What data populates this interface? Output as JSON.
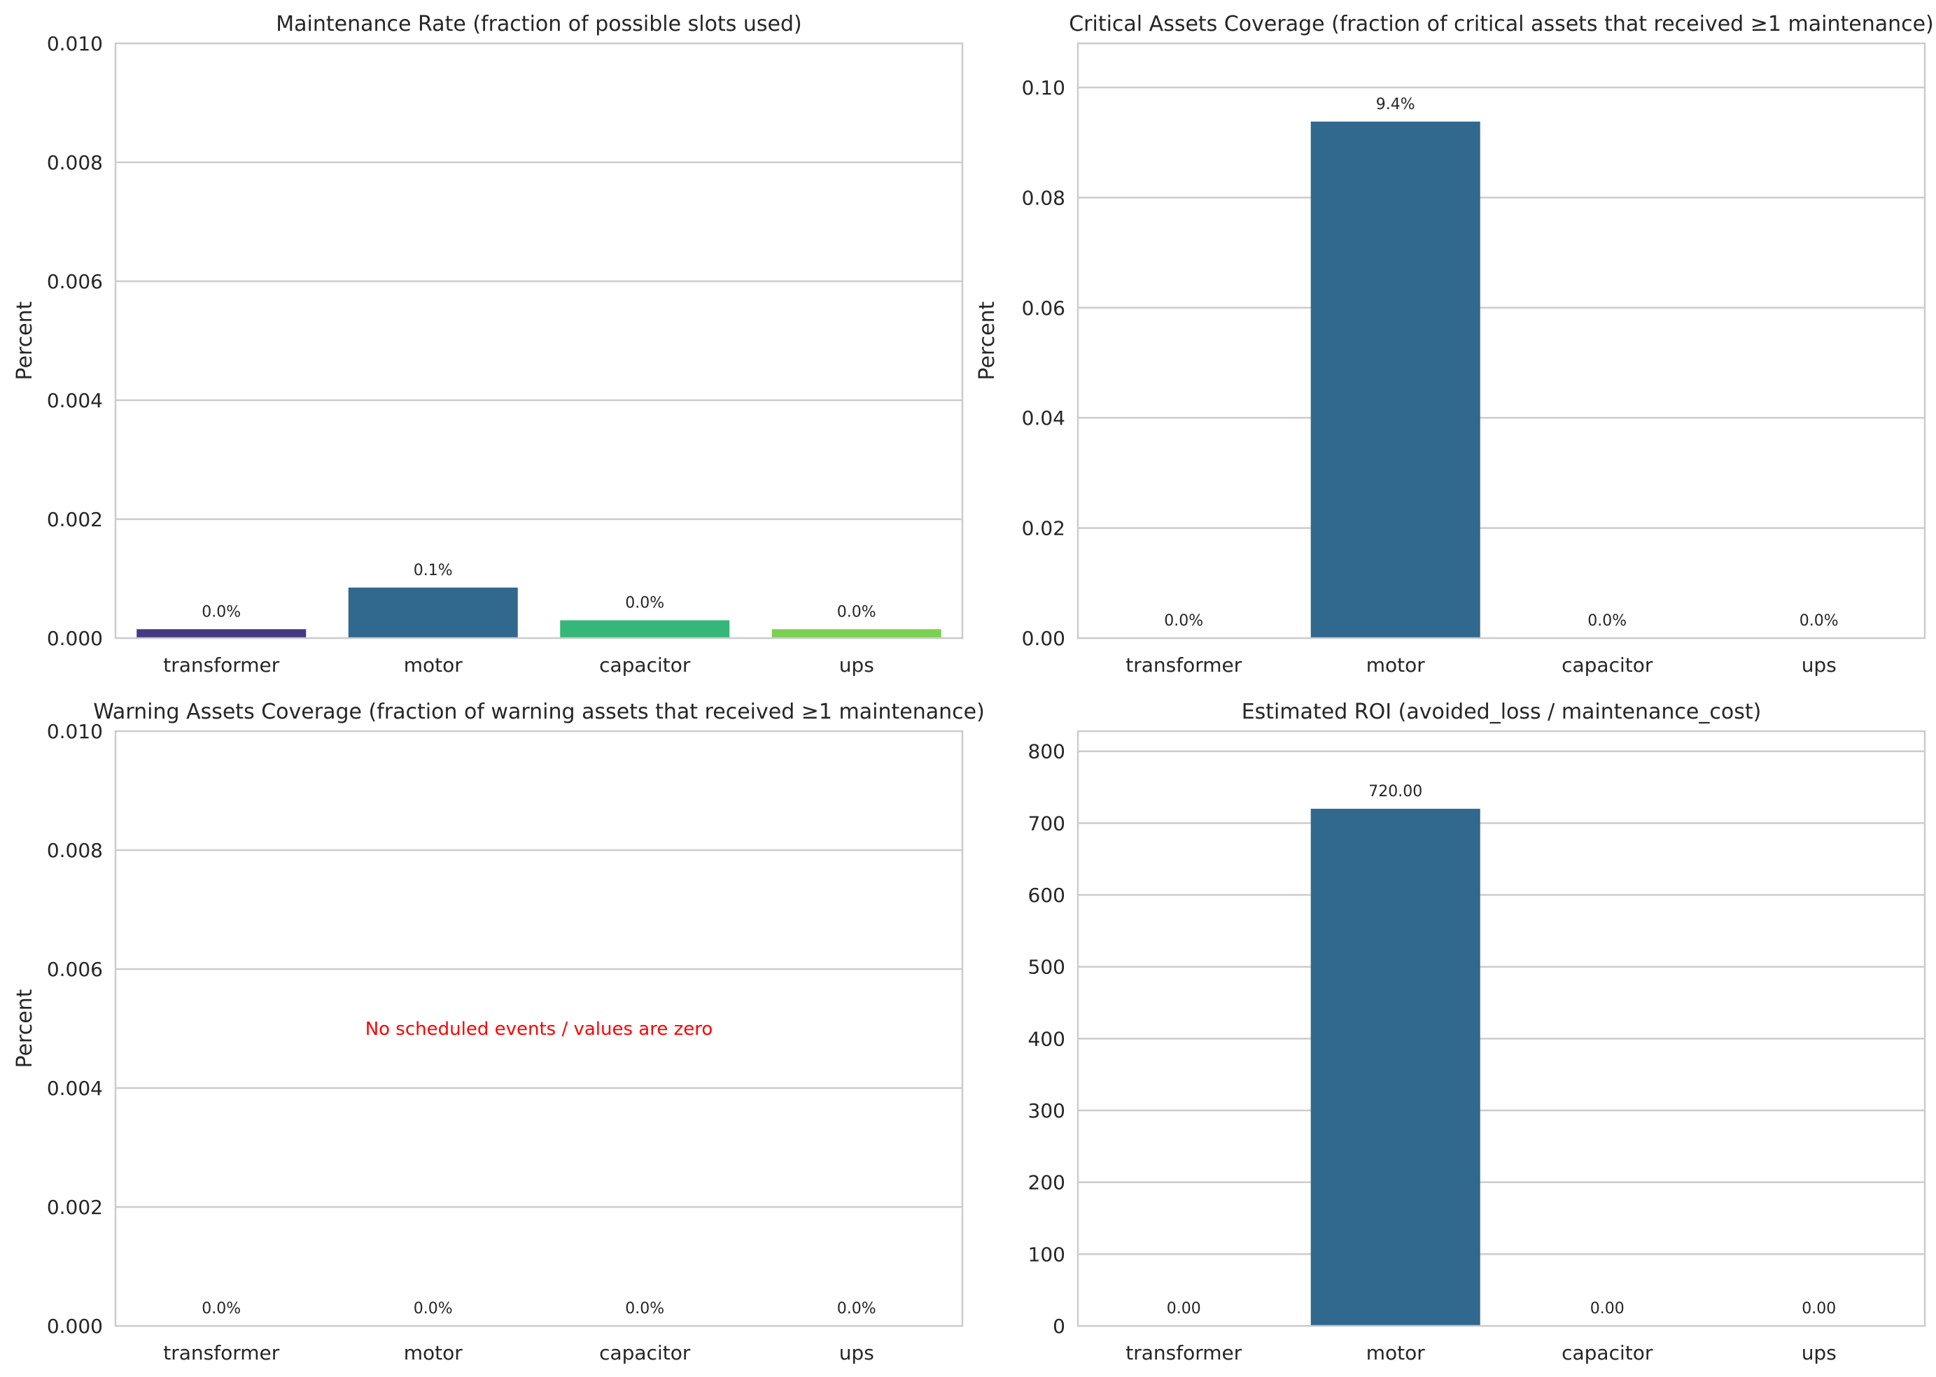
{
  "chart_data": [
    {
      "type": "bar",
      "title": "Maintenance Rate (fraction of possible slots used)",
      "xlabel": "",
      "ylabel": "Percent",
      "categories": [
        "transformer",
        "motor",
        "capacitor",
        "ups"
      ],
      "values": [
        0.00015,
        0.00085,
        0.0003,
        0.00015
      ],
      "bar_labels": [
        "0.0%",
        "0.1%",
        "0.0%",
        "0.0%"
      ],
      "colors": [
        "#443983",
        "#31688e",
        "#35b779",
        "#7ad151"
      ],
      "ylim": [
        0,
        0.01
      ],
      "yticks": [
        0,
        0.002,
        0.004,
        0.006,
        0.008,
        0.01
      ],
      "ytick_labels": [
        "0.000",
        "0.002",
        "0.004",
        "0.006",
        "0.008",
        "0.010"
      ],
      "grid": true
    },
    {
      "type": "bar",
      "title": "Critical Assets Coverage (fraction of critical assets that received ≥1 maintenance)",
      "xlabel": "",
      "ylabel": "Percent",
      "categories": [
        "transformer",
        "motor",
        "capacitor",
        "ups"
      ],
      "values": [
        0,
        0.0938,
        0,
        0
      ],
      "bar_labels": [
        "0.0%",
        "9.4%",
        "0.0%",
        "0.0%"
      ],
      "colors": [
        "#31688e",
        "#31688e",
        "#31688e",
        "#31688e"
      ],
      "ylim": [
        0,
        0.108
      ],
      "yticks": [
        0,
        0.02,
        0.04,
        0.06,
        0.08,
        0.1
      ],
      "ytick_labels": [
        "0.00",
        "0.02",
        "0.04",
        "0.06",
        "0.08",
        "0.10"
      ],
      "grid": true
    },
    {
      "type": "bar",
      "title": "Warning Assets Coverage (fraction of warning assets that received ≥1 maintenance)",
      "xlabel": "",
      "ylabel": "Percent",
      "categories": [
        "transformer",
        "motor",
        "capacitor",
        "ups"
      ],
      "values": [
        0,
        0,
        0,
        0
      ],
      "bar_labels": [
        "0.0%",
        "0.0%",
        "0.0%",
        "0.0%"
      ],
      "colors": [
        "#31688e",
        "#31688e",
        "#31688e",
        "#31688e"
      ],
      "ylim": [
        0,
        0.01
      ],
      "yticks": [
        0,
        0.002,
        0.004,
        0.006,
        0.008,
        0.01
      ],
      "ytick_labels": [
        "0.000",
        "0.002",
        "0.004",
        "0.006",
        "0.008",
        "0.010"
      ],
      "grid": true,
      "annotation": {
        "text": "No scheduled events / values are zero",
        "color": "#ff0000",
        "x": 1.5,
        "y": 0.005
      }
    },
    {
      "type": "bar",
      "title": "Estimated ROI (avoided_loss / maintenance_cost)",
      "xlabel": "",
      "ylabel": "",
      "categories": [
        "transformer",
        "motor",
        "capacitor",
        "ups"
      ],
      "values": [
        0,
        720,
        0,
        0
      ],
      "bar_labels": [
        "0.00",
        "720.00",
        "0.00",
        "0.00"
      ],
      "colors": [
        "#31688e",
        "#31688e",
        "#31688e",
        "#31688e"
      ],
      "ylim": [
        0,
        828
      ],
      "yticks": [
        0,
        100,
        200,
        300,
        400,
        500,
        600,
        700,
        800
      ],
      "ytick_labels": [
        "0",
        "100",
        "200",
        "300",
        "400",
        "500",
        "600",
        "700",
        "800"
      ],
      "grid": true
    }
  ]
}
